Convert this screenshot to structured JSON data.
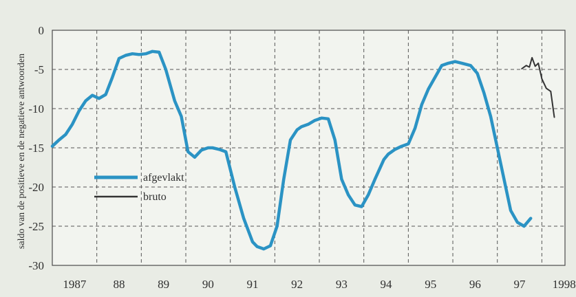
{
  "chart_data": {
    "type": "line",
    "title": "",
    "xlabel": "",
    "ylabel": "saldo van de positieve en de negatieve antwoorden",
    "x_range": [
      1987.0,
      1998.5
    ],
    "ylim": [
      -30,
      0
    ],
    "y_ticks": [
      0,
      -5,
      -10,
      -15,
      -20,
      -25,
      -30
    ],
    "y_tick_labels": [
      "0",
      "-5",
      "-10",
      "-15",
      "-20",
      "-25",
      "-30"
    ],
    "x_ticks": [
      1987,
      1988,
      1989,
      1990,
      1991,
      1992,
      1993,
      1994,
      1995,
      1996,
      1997,
      1998
    ],
    "x_tick_labels": [
      "1987",
      "88",
      "89",
      "90",
      "91",
      "92",
      "93",
      "94",
      "95",
      "96",
      "97",
      "1998"
    ],
    "grid": true,
    "legend_position": "left-lower",
    "colors": {
      "afgevlakt": "#2b93c4",
      "bruto": "#333333",
      "background": "#e9ece5",
      "plot_background": "#f2f4ef"
    },
    "series": [
      {
        "name": "afgevlakt",
        "x": [
          1987.0,
          1987.15,
          1987.3,
          1987.45,
          1987.6,
          1987.75,
          1987.9,
          1988.05,
          1988.2,
          1988.35,
          1988.5,
          1988.65,
          1988.8,
          1988.95,
          1989.1,
          1989.25,
          1989.4,
          1989.55,
          1989.75,
          1989.9,
          1990.05,
          1990.2,
          1990.35,
          1990.5,
          1990.6,
          1990.75,
          1990.9,
          1991.1,
          1991.3,
          1991.5,
          1991.6,
          1991.75,
          1991.9,
          1992.05,
          1992.2,
          1992.35,
          1992.5,
          1992.6,
          1992.75,
          1992.9,
          1993.05,
          1993.2,
          1993.35,
          1993.5,
          1993.65,
          1993.8,
          1993.95,
          1994.1,
          1994.25,
          1994.45,
          1994.55,
          1994.7,
          1994.85,
          1995.0,
          1995.15,
          1995.3,
          1995.45,
          1995.6,
          1995.75,
          1995.9,
          1996.05,
          1996.2,
          1996.4,
          1996.55,
          1996.7,
          1996.85,
          1997.0,
          1997.15,
          1997.3,
          1997.45,
          1997.6,
          1997.75
        ],
        "y": [
          -14.8,
          -14.0,
          -13.3,
          -12.0,
          -10.3,
          -9.0,
          -8.3,
          -8.7,
          -8.2,
          -6.0,
          -3.6,
          -3.2,
          -3.0,
          -3.1,
          -3.0,
          -2.7,
          -2.8,
          -5.0,
          -9.0,
          -11.0,
          -15.5,
          -16.2,
          -15.3,
          -15.0,
          -15.0,
          -15.2,
          -15.5,
          -20.0,
          -24.0,
          -27.0,
          -27.6,
          -27.9,
          -27.5,
          -25.0,
          -19.0,
          -14.0,
          -12.7,
          -12.3,
          -12.0,
          -11.5,
          -11.2,
          -11.3,
          -14.0,
          -19.0,
          -21.0,
          -22.3,
          -22.5,
          -21.0,
          -19.0,
          -16.5,
          -15.8,
          -15.2,
          -14.8,
          -14.5,
          -12.5,
          -9.5,
          -7.5,
          -6.0,
          -4.5,
          -4.2,
          -4.0,
          -4.2,
          -4.5,
          -5.5,
          -8.0,
          -11.0,
          -15.0,
          -19.0,
          -23.0,
          -24.5,
          -25.0,
          -24.0
        ],
        "x_visible_end": 1997.8
      },
      {
        "name": "bruto",
        "x": [
          1997.55,
          1997.65,
          1997.72,
          1997.78,
          1997.85,
          1997.92,
          1998.0,
          1998.1,
          1998.2,
          1998.28
        ],
        "y": [
          -4.9,
          -4.5,
          -4.7,
          -3.5,
          -4.6,
          -4.2,
          -6.2,
          -7.4,
          -7.8,
          -11.1
        ]
      }
    ]
  }
}
